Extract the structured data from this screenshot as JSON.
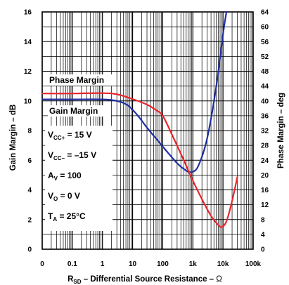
{
  "chart_data": {
    "type": "line",
    "xlabel": "R_SD – Differential Source Resistance – Ω",
    "xlabel_main": "R",
    "xlabel_sub": "SD",
    "xlabel_rest": " – Differential Source Resistance – ",
    "xlabel_unit": "Ω",
    "ylabel_left": "Gain Margin – dB",
    "ylabel_right": "Phase Margin – deg",
    "x_scale": "log",
    "x_ticks": [
      {
        "value": 0.01,
        "label": "0"
      },
      {
        "value": 0.1,
        "label": "0.1"
      },
      {
        "value": 1,
        "label": "1"
      },
      {
        "value": 10,
        "label": "10"
      },
      {
        "value": 100,
        "label": "100"
      },
      {
        "value": 1000,
        "label": "1k"
      },
      {
        "value": 10000,
        "label": "10k"
      },
      {
        "value": 100000,
        "label": "100k"
      }
    ],
    "xlim": [
      0.01,
      100000
    ],
    "ylim_left": [
      0,
      16
    ],
    "ylim_right": [
      0,
      64
    ],
    "y_ticks_left": [
      "0",
      "2",
      "4",
      "6",
      "8",
      "10",
      "12",
      "14",
      "16"
    ],
    "y_ticks_right": [
      "0",
      "4",
      "8",
      "12",
      "16",
      "20",
      "24",
      "28",
      "32",
      "36",
      "40",
      "44",
      "48",
      "52",
      "56",
      "60",
      "64"
    ],
    "grid": true,
    "series": [
      {
        "name": "Gain Margin",
        "axis": "left",
        "color": "#1f2fa0",
        "x": [
          0.01,
          0.1,
          1,
          3,
          7,
          15,
          30,
          70,
          150,
          300,
          600,
          900,
          1500,
          3000,
          6000,
          10000,
          13000
        ],
        "y": [
          10.1,
          10.1,
          10.1,
          10.0,
          9.7,
          9.0,
          8.2,
          7.3,
          6.5,
          5.8,
          5.3,
          5.2,
          5.6,
          7.5,
          11.0,
          14.5,
          16.0
        ]
      },
      {
        "name": "Phase Margin",
        "axis": "right",
        "color": "#e8262c",
        "x": [
          0.01,
          0.1,
          1,
          3,
          10,
          30,
          60,
          100,
          200,
          500,
          1000,
          2000,
          4000,
          7000,
          9000,
          13000,
          20000,
          30000
        ],
        "y": [
          42.0,
          42.0,
          42.1,
          41.8,
          40.5,
          39.0,
          37.5,
          36.0,
          31.0,
          24.0,
          18.5,
          13.5,
          9.0,
          6.5,
          6.0,
          7.5,
          13.0,
          19.5
        ]
      }
    ],
    "annotations": {
      "phase_margin_label": "Phase Margin",
      "gain_margin_label": "Gain Margin"
    },
    "conditions": [
      {
        "main": "V",
        "sub": "CC+",
        "rest": " = 15 V"
      },
      {
        "main": "V",
        "sub": "CC–",
        "rest": " = –15 V"
      },
      {
        "main": "A",
        "sub": "V",
        "rest": " = 100"
      },
      {
        "main": "V",
        "sub": "O",
        "rest": " = 0 V"
      },
      {
        "main": "T",
        "sub": "A",
        "rest": " = 25°C"
      }
    ]
  }
}
